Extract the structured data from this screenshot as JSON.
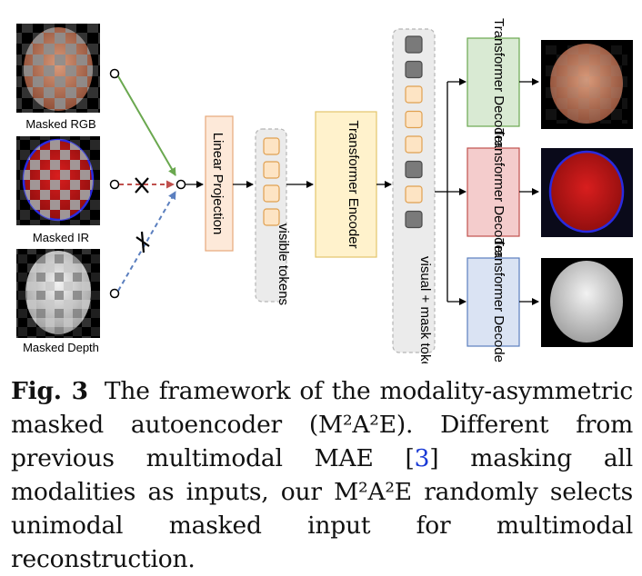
{
  "inputs": [
    {
      "label": "Masked RGB",
      "arrow_color": "#6aa84f",
      "blocked": false
    },
    {
      "label": "Masked IR",
      "arrow_color": "#c0504d",
      "blocked": true
    },
    {
      "label": "Masked Depth",
      "arrow_color": "#5b7fbf",
      "blocked": true
    }
  ],
  "blocks": {
    "linear_projection": "Linear Projection",
    "visible_tokens": "visible tokens",
    "encoder": "Transformer Encoder",
    "mask_tokens": "visual + mask tokens",
    "decoders": [
      "Transformer Decoder",
      "Transformer Decoder",
      "Transformer Decoder"
    ]
  },
  "colors": {
    "projection_fill": "#fde9d9",
    "projection_stroke": "#e7a87a",
    "encoder_fill": "#fff2cc",
    "encoder_stroke": "#e3c56b",
    "token_fill": "#fde4c4",
    "token_stroke": "#e0a050",
    "mask_token_fill": "#7a7a7a",
    "decoder_rgb": "#d9ead3",
    "decoder_ir": "#f4cccc",
    "decoder_depth": "#dae3f3"
  },
  "caption": {
    "label": "Fig. 3",
    "text_before_cite": "The framework of the modality-asymmetric masked autoencoder (M²A²E). Different from previous multimodal MAE [",
    "cite": "3",
    "text_after_cite": "] masking all modalities as inputs, our M²A²E randomly selects unimodal masked input for multimodal reconstruction."
  }
}
